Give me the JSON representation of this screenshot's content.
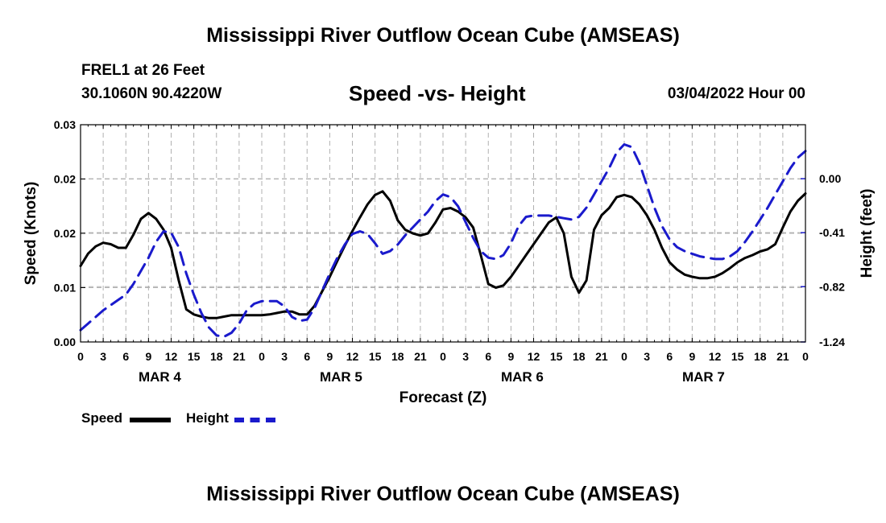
{
  "page": {
    "main_title": "Mississippi River Outflow Ocean Cube (AMSEAS)",
    "footer_title": "Mississippi River Outflow Ocean Cube (AMSEAS)",
    "station_line": "FREL1 at 26 Feet",
    "coords_line": "30.1060N  90.4220W",
    "date_line": "03/04/2022 Hour 00"
  },
  "chart_data": {
    "type": "line",
    "title": "Speed -vs- Height",
    "xlabel": "Forecast (Z)",
    "ylabel": "Speed (Knots)",
    "y2label": "Height (feet)",
    "ylim": [
      0,
      0.03
    ],
    "yticks": [
      "0.00",
      "0.01",
      "0.02",
      "0.02",
      "0.03"
    ],
    "ytick_values": [
      0.0,
      0.0075,
      0.015,
      0.0225,
      0.03
    ],
    "y2lim": [
      -1.24,
      0.41
    ],
    "y2ticks": [
      "0.00",
      "-0.41",
      "-0.82",
      "-1.24"
    ],
    "y2tick_values": [
      0.0,
      -0.41,
      -0.82,
      -1.24
    ],
    "xlim": [
      0,
      96
    ],
    "xtick_labels": [
      "0",
      "3",
      "6",
      "9",
      "12",
      "15",
      "18",
      "21",
      "0",
      "3",
      "6",
      "9",
      "12",
      "15",
      "18",
      "21",
      "0",
      "3",
      "6",
      "9",
      "12",
      "15",
      "18",
      "21",
      "0",
      "3",
      "6",
      "9",
      "12",
      "15",
      "18",
      "21",
      "0"
    ],
    "day_labels": [
      {
        "label": "MAR 4",
        "hour": 10.5
      },
      {
        "label": "MAR 5",
        "hour": 34.5
      },
      {
        "label": "MAR 6",
        "hour": 58.5
      },
      {
        "label": "MAR 7",
        "hour": 82.5
      }
    ],
    "series": [
      {
        "name": "Speed",
        "axis": "left",
        "color": "#000000",
        "style": "solid",
        "x": [
          0,
          1,
          2,
          3,
          4,
          5,
          6,
          7,
          8,
          9,
          10,
          11,
          12,
          13,
          14,
          15,
          16,
          17,
          18,
          19,
          20,
          21,
          22,
          23,
          24,
          25,
          26,
          27,
          28,
          29,
          30,
          31,
          32,
          33,
          34,
          35,
          36,
          37,
          38,
          39,
          40,
          41,
          42,
          43,
          44,
          45,
          46,
          47,
          48,
          49,
          50,
          51,
          52,
          53,
          54,
          55,
          56,
          57,
          58,
          59,
          60,
          61,
          62,
          63,
          64,
          65,
          66,
          67,
          68,
          69,
          70,
          71,
          72,
          73,
          74,
          75,
          76,
          77,
          78,
          79,
          80,
          81,
          82,
          83,
          84,
          85,
          86,
          87,
          88,
          89,
          90,
          91,
          92,
          93,
          94,
          95,
          96
        ],
        "values": [
          0.0105,
          0.0122,
          0.0132,
          0.0137,
          0.0135,
          0.013,
          0.013,
          0.0148,
          0.017,
          0.0178,
          0.017,
          0.0155,
          0.013,
          0.0085,
          0.0045,
          0.0038,
          0.0035,
          0.0033,
          0.0033,
          0.0035,
          0.0037,
          0.0037,
          0.0037,
          0.0037,
          0.0037,
          0.0038,
          0.004,
          0.0042,
          0.0042,
          0.0038,
          0.0038,
          0.005,
          0.007,
          0.009,
          0.0112,
          0.0133,
          0.0153,
          0.0172,
          0.019,
          0.0203,
          0.0208,
          0.0195,
          0.0168,
          0.0155,
          0.015,
          0.0147,
          0.015,
          0.0165,
          0.0183,
          0.0185,
          0.018,
          0.0172,
          0.0158,
          0.012,
          0.008,
          0.0075,
          0.0078,
          0.009,
          0.0105,
          0.012,
          0.0135,
          0.015,
          0.0165,
          0.0172,
          0.015,
          0.009,
          0.0068,
          0.0085,
          0.0155,
          0.0175,
          0.0185,
          0.02,
          0.0203,
          0.02,
          0.019,
          0.0175,
          0.0155,
          0.013,
          0.011,
          0.01,
          0.0093,
          0.009,
          0.0088,
          0.0088,
          0.009,
          0.0095,
          0.0102,
          0.011,
          0.0116,
          0.012,
          0.0125,
          0.0128,
          0.0135,
          0.0158,
          0.018,
          0.0195,
          0.0205
        ]
      },
      {
        "name": "Height",
        "axis": "right",
        "color": "#1a1acc",
        "style": "dashed",
        "x": [
          0,
          1,
          2,
          3,
          4,
          5,
          6,
          7,
          8,
          9,
          10,
          11,
          12,
          13,
          14,
          15,
          16,
          17,
          18,
          19,
          20,
          21,
          22,
          23,
          24,
          25,
          26,
          27,
          28,
          29,
          30,
          31,
          32,
          33,
          34,
          35,
          36,
          37,
          38,
          39,
          40,
          41,
          42,
          43,
          44,
          45,
          46,
          47,
          48,
          49,
          50,
          51,
          52,
          53,
          54,
          55,
          56,
          57,
          58,
          59,
          60,
          61,
          62,
          63,
          64,
          65,
          66,
          67,
          68,
          69,
          70,
          71,
          72,
          73,
          74,
          75,
          76,
          77,
          78,
          79,
          80,
          81,
          82,
          83,
          84,
          85,
          86,
          87,
          88,
          89,
          90,
          91,
          92,
          93,
          94,
          95,
          96
        ],
        "values": [
          -1.15,
          -1.1,
          -1.05,
          -1.0,
          -0.96,
          -0.92,
          -0.88,
          -0.8,
          -0.7,
          -0.6,
          -0.48,
          -0.4,
          -0.41,
          -0.52,
          -0.72,
          -0.88,
          -1.02,
          -1.13,
          -1.19,
          -1.2,
          -1.17,
          -1.1,
          -1.0,
          -0.95,
          -0.93,
          -0.93,
          -0.93,
          -0.97,
          -1.05,
          -1.08,
          -1.07,
          -0.98,
          -0.85,
          -0.72,
          -0.6,
          -0.5,
          -0.42,
          -0.4,
          -0.42,
          -0.49,
          -0.57,
          -0.55,
          -0.5,
          -0.43,
          -0.37,
          -0.31,
          -0.25,
          -0.17,
          -0.12,
          -0.14,
          -0.21,
          -0.33,
          -0.45,
          -0.55,
          -0.6,
          -0.61,
          -0.58,
          -0.49,
          -0.36,
          -0.29,
          -0.28,
          -0.28,
          -0.28,
          -0.29,
          -0.3,
          -0.31,
          -0.29,
          -0.22,
          -0.12,
          -0.02,
          0.08,
          0.2,
          0.26,
          0.24,
          0.12,
          -0.05,
          -0.22,
          -0.36,
          -0.46,
          -0.52,
          -0.55,
          -0.57,
          -0.59,
          -0.6,
          -0.61,
          -0.61,
          -0.59,
          -0.55,
          -0.48,
          -0.4,
          -0.31,
          -0.22,
          -0.12,
          -0.02,
          0.08,
          0.16,
          0.21
        ]
      }
    ],
    "grid": true,
    "legend_position": "bottom-left"
  }
}
